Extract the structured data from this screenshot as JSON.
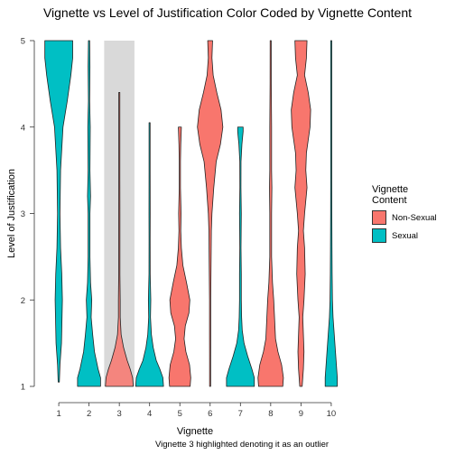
{
  "chart_data": {
    "type": "violin",
    "title": "Vignette vs Level of Justification Color Coded by Vignette Content",
    "xlabel": "Vignette",
    "ylabel": "Level of Justification",
    "caption": "Vignette 3 highlighted denoting it as an outlier",
    "ylim": [
      1,
      5
    ],
    "xlim": [
      0.55,
      10.45
    ],
    "y_ticks": [
      "1",
      "2",
      "3",
      "4",
      "5"
    ],
    "x_ticks": [
      "1",
      "2",
      "3",
      "4",
      "5",
      "6",
      "7",
      "8",
      "9",
      "10"
    ],
    "grid": false,
    "legend": {
      "title": "Vignette Content",
      "title_lines": [
        "Vignette",
        "Content"
      ],
      "position": "right",
      "entries": [
        {
          "label": "Non-Sexual",
          "color": "#F8766D"
        },
        {
          "label": "Sexual",
          "color": "#00BFC4"
        }
      ]
    },
    "highlight": {
      "vignette": "3",
      "color": "#D9D9D9"
    },
    "violins": [
      {
        "vignette": "1",
        "content": "Sexual",
        "min": 1.05,
        "max": 5.0,
        "profile": [
          [
            1.05,
            0.02
          ],
          [
            1.25,
            0.04
          ],
          [
            1.5,
            0.09
          ],
          [
            2.0,
            0.12
          ],
          [
            2.3,
            0.1
          ],
          [
            2.6,
            0.06
          ],
          [
            3.0,
            0.04
          ],
          [
            3.5,
            0.06
          ],
          [
            4.0,
            0.14
          ],
          [
            4.3,
            0.28
          ],
          [
            4.6,
            0.4
          ],
          [
            4.8,
            0.46
          ],
          [
            5.0,
            0.46
          ]
        ]
      },
      {
        "vignette": "2",
        "content": "Sexual",
        "min": 1.0,
        "max": 5.0,
        "profile": [
          [
            1.0,
            0.38
          ],
          [
            1.1,
            0.38
          ],
          [
            1.2,
            0.3
          ],
          [
            1.4,
            0.18
          ],
          [
            1.6,
            0.12
          ],
          [
            1.8,
            0.07
          ],
          [
            2.0,
            0.09
          ],
          [
            2.2,
            0.05
          ],
          [
            2.5,
            0.03
          ],
          [
            3.0,
            0.03
          ],
          [
            3.2,
            0.05
          ],
          [
            3.5,
            0.03
          ],
          [
            4.0,
            0.04
          ],
          [
            4.3,
            0.02
          ],
          [
            4.7,
            0.03
          ],
          [
            5.0,
            0.02
          ]
        ]
      },
      {
        "vignette": "3",
        "content": "Non-Sexual",
        "min": 1.0,
        "max": 4.4,
        "profile": [
          [
            1.0,
            0.46
          ],
          [
            1.1,
            0.44
          ],
          [
            1.2,
            0.36
          ],
          [
            1.3,
            0.26
          ],
          [
            1.45,
            0.14
          ],
          [
            1.6,
            0.06
          ],
          [
            1.8,
            0.03
          ],
          [
            2.0,
            0.03
          ],
          [
            2.3,
            0.02
          ],
          [
            2.6,
            0.02
          ],
          [
            3.0,
            0.02
          ],
          [
            3.4,
            0.01
          ],
          [
            3.8,
            0.015
          ],
          [
            4.1,
            0.01
          ],
          [
            4.4,
            0.005
          ]
        ]
      },
      {
        "vignette": "4",
        "content": "Sexual",
        "min": 1.0,
        "max": 4.05,
        "profile": [
          [
            1.0,
            0.46
          ],
          [
            1.1,
            0.44
          ],
          [
            1.2,
            0.34
          ],
          [
            1.3,
            0.22
          ],
          [
            1.45,
            0.12
          ],
          [
            1.6,
            0.06
          ],
          [
            1.8,
            0.03
          ],
          [
            2.0,
            0.04
          ],
          [
            2.3,
            0.02
          ],
          [
            2.7,
            0.015
          ],
          [
            3.0,
            0.02
          ],
          [
            3.5,
            0.01
          ],
          [
            4.05,
            0.005
          ]
        ]
      },
      {
        "vignette": "5",
        "content": "Non-Sexual",
        "min": 1.0,
        "max": 4.0,
        "profile": [
          [
            1.0,
            0.34
          ],
          [
            1.1,
            0.36
          ],
          [
            1.25,
            0.32
          ],
          [
            1.4,
            0.2
          ],
          [
            1.55,
            0.14
          ],
          [
            1.7,
            0.18
          ],
          [
            1.85,
            0.3
          ],
          [
            2.0,
            0.33
          ],
          [
            2.2,
            0.22
          ],
          [
            2.4,
            0.1
          ],
          [
            2.6,
            0.05
          ],
          [
            2.8,
            0.03
          ],
          [
            3.0,
            0.04
          ],
          [
            3.3,
            0.02
          ],
          [
            3.6,
            0.02
          ],
          [
            3.8,
            0.03
          ],
          [
            4.0,
            0.05
          ]
        ]
      },
      {
        "vignette": "6",
        "content": "Non-Sexual",
        "min": 1.0,
        "max": 5.0,
        "profile": [
          [
            1.0,
            0.01
          ],
          [
            1.3,
            0.01
          ],
          [
            1.6,
            0.02
          ],
          [
            2.0,
            0.02
          ],
          [
            2.4,
            0.03
          ],
          [
            2.8,
            0.04
          ],
          [
            3.0,
            0.06
          ],
          [
            3.3,
            0.12
          ],
          [
            3.6,
            0.2
          ],
          [
            3.8,
            0.34
          ],
          [
            4.0,
            0.42
          ],
          [
            4.2,
            0.36
          ],
          [
            4.4,
            0.22
          ],
          [
            4.6,
            0.1
          ],
          [
            4.8,
            0.06
          ],
          [
            5.0,
            0.08
          ]
        ]
      },
      {
        "vignette": "7",
        "content": "Sexual",
        "min": 1.0,
        "max": 4.0,
        "profile": [
          [
            1.0,
            0.46
          ],
          [
            1.1,
            0.46
          ],
          [
            1.2,
            0.38
          ],
          [
            1.35,
            0.24
          ],
          [
            1.5,
            0.12
          ],
          [
            1.65,
            0.06
          ],
          [
            1.8,
            0.04
          ],
          [
            2.0,
            0.03
          ],
          [
            2.3,
            0.03
          ],
          [
            2.6,
            0.02
          ],
          [
            3.0,
            0.03
          ],
          [
            3.3,
            0.015
          ],
          [
            3.6,
            0.02
          ],
          [
            3.8,
            0.05
          ],
          [
            3.95,
            0.09
          ],
          [
            4.0,
            0.09
          ]
        ]
      },
      {
        "vignette": "8",
        "content": "Non-Sexual",
        "min": 1.0,
        "max": 5.0,
        "profile": [
          [
            1.0,
            0.4
          ],
          [
            1.1,
            0.42
          ],
          [
            1.25,
            0.36
          ],
          [
            1.4,
            0.24
          ],
          [
            1.55,
            0.16
          ],
          [
            1.7,
            0.14
          ],
          [
            1.85,
            0.12
          ],
          [
            2.0,
            0.1
          ],
          [
            2.2,
            0.06
          ],
          [
            2.5,
            0.03
          ],
          [
            3.0,
            0.03
          ],
          [
            3.3,
            0.04
          ],
          [
            3.5,
            0.03
          ],
          [
            4.0,
            0.03
          ],
          [
            4.5,
            0.02
          ],
          [
            5.0,
            0.01
          ]
        ]
      },
      {
        "vignette": "9",
        "content": "Non-Sexual",
        "min": 1.0,
        "max": 5.0,
        "profile": [
          [
            1.0,
            0.04
          ],
          [
            1.2,
            0.08
          ],
          [
            1.4,
            0.1
          ],
          [
            1.6,
            0.08
          ],
          [
            1.8,
            0.06
          ],
          [
            2.0,
            0.1
          ],
          [
            2.3,
            0.14
          ],
          [
            2.6,
            0.12
          ],
          [
            2.8,
            0.08
          ],
          [
            3.0,
            0.12
          ],
          [
            3.3,
            0.2
          ],
          [
            3.5,
            0.16
          ],
          [
            3.7,
            0.18
          ],
          [
            4.0,
            0.3
          ],
          [
            4.2,
            0.32
          ],
          [
            4.4,
            0.24
          ],
          [
            4.6,
            0.12
          ],
          [
            4.8,
            0.18
          ],
          [
            5.0,
            0.2
          ]
        ]
      },
      {
        "vignette": "10",
        "content": "Sexual",
        "min": 1.0,
        "max": 5.0,
        "profile": [
          [
            1.0,
            0.2
          ],
          [
            1.1,
            0.2
          ],
          [
            1.25,
            0.17
          ],
          [
            1.4,
            0.14
          ],
          [
            1.6,
            0.1
          ],
          [
            1.8,
            0.06
          ],
          [
            2.0,
            0.04
          ],
          [
            2.3,
            0.03
          ],
          [
            2.6,
            0.025
          ],
          [
            3.0,
            0.02
          ],
          [
            3.4,
            0.015
          ],
          [
            3.8,
            0.01
          ],
          [
            4.2,
            0.008
          ],
          [
            4.6,
            0.006
          ],
          [
            5.0,
            0.005
          ]
        ]
      }
    ]
  }
}
